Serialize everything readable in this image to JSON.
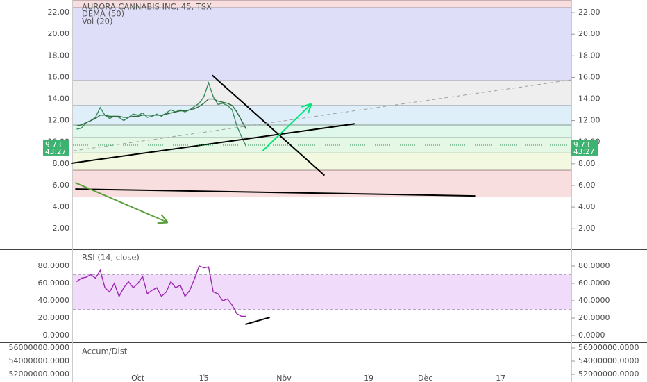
{
  "chart_data": [
    {
      "type": "line",
      "title": "AURORA CANNABIS INC, 45, TSX",
      "annotations": [
        "Vol (20)"
      ],
      "x": [
        -13,
        -12,
        -11,
        -10,
        -9,
        -8,
        -7,
        -6,
        -5,
        -4,
        -3,
        -2,
        -1,
        0,
        1,
        2,
        3,
        4,
        5,
        6,
        7,
        8,
        9,
        10,
        11,
        12,
        13,
        14,
        15,
        16,
        17,
        18,
        19,
        20,
        21,
        22,
        23
      ],
      "series": [
        {
          "color": "#3d8b5f",
          "values": [
            11.2,
            11.3,
            11.8,
            12.0,
            12.3,
            13.2,
            12.5,
            12.2,
            12.4,
            12.3,
            12.0,
            12.3,
            12.6,
            12.5,
            12.7,
            12.3,
            12.4,
            12.6,
            12.4,
            12.7,
            13.0,
            12.8,
            13.0,
            12.8,
            13.0,
            13.3,
            13.6,
            14.2,
            15.5,
            14.2,
            13.5,
            13.6,
            13.4,
            13.0,
            11.5,
            10.5,
            9.6
          ]
        },
        {
          "name": "DEMA (50)",
          "color": "#2e6b3a",
          "values": [
            11.5,
            11.6,
            11.8,
            12.0,
            12.2,
            12.5,
            12.5,
            12.4,
            12.4,
            12.4,
            12.3,
            12.3,
            12.4,
            12.4,
            12.5,
            12.5,
            12.5,
            12.5,
            12.5,
            12.6,
            12.7,
            12.8,
            12.9,
            12.9,
            13.0,
            13.1,
            13.3,
            13.6,
            14.0,
            14.0,
            13.8,
            13.7,
            13.6,
            13.4,
            12.8,
            12.0,
            11.2
          ]
        }
      ],
      "xlim": [
        -13.8,
        92
      ],
      "xticks": [
        {
          "value": 0,
          "label": "Oct"
        },
        {
          "value": 14,
          "label": "15"
        },
        {
          "value": 31,
          "label": "Nov"
        },
        {
          "value": 49,
          "label": "19"
        },
        {
          "value": 61,
          "label": "Dec"
        },
        {
          "value": 77,
          "label": "17"
        }
      ],
      "ylim": [
        0.15,
        23.16
      ],
      "yticks": [
        {
          "value": 2,
          "label": "2.00"
        },
        {
          "value": 4,
          "label": "4.00"
        },
        {
          "value": 6,
          "label": "6.00"
        },
        {
          "value": 8,
          "label": "8.00"
        },
        {
          "value": 10,
          "label": "10.00"
        },
        {
          "value": 12,
          "label": "12.00"
        },
        {
          "value": 14,
          "label": "14.00"
        },
        {
          "value": 16,
          "label": "16.00"
        },
        {
          "value": 18,
          "label": "18.00"
        },
        {
          "value": 20,
          "label": "20.00"
        },
        {
          "value": 22,
          "label": "22.00"
        }
      ],
      "last_price": {
        "value": 9.73,
        "label": "9.73"
      },
      "countdown": "43:27",
      "fib_bands": [
        {
          "from": 22.45,
          "to": 23.16,
          "color": "#f6d3d3"
        },
        {
          "from": 15.7,
          "to": 22.45,
          "color": "#d4d3f7"
        },
        {
          "from": 13.39,
          "to": 15.7,
          "color": "#e8e8e8"
        },
        {
          "from": 11.59,
          "to": 13.39,
          "color": "#d3e9f7"
        },
        {
          "from": 10.43,
          "to": 11.59,
          "color": "#d5f5e6"
        },
        {
          "from": 9.0,
          "to": 10.43,
          "color": "#dcf5dc"
        },
        {
          "from": 7.41,
          "to": 9.0,
          "color": "#eef7d5"
        },
        {
          "from": 4.9,
          "to": 7.41,
          "color": "#f6d3d3"
        }
      ],
      "drawings": [
        {
          "x": [
            15.76,
            39.6
          ],
          "y": [
            16.2,
            6.93
          ],
          "color": "#000000"
        },
        {
          "x": [
            -14.2,
            46
          ],
          "y": [
            8.05,
            11.7
          ],
          "color": "#000000"
        },
        {
          "x": [
            -13.3,
            71.6
          ],
          "y": [
            5.67,
            5.03
          ],
          "color": "#000000"
        },
        {
          "x": [
            -13.7,
            92
          ],
          "y": [
            9.2,
            15.77
          ],
          "color": "#9e9e9e",
          "dashed": true
        },
        {
          "x": [
            26.5,
            36.7
          ],
          "y": [
            9.2,
            13.5
          ],
          "color": "#00e676",
          "arrow": true
        },
        {
          "x": [
            -13.3,
            6.2
          ],
          "y": [
            6.25,
            2.6
          ],
          "color": "#5a9e3c",
          "arrow": true
        }
      ]
    },
    {
      "type": "line",
      "title": "RSI (14, close)",
      "series": [
        {
          "color": "#9c27b0",
          "values": [
            62,
            66,
            67,
            70,
            66,
            75,
            55,
            50,
            60,
            45,
            55,
            62,
            55,
            60,
            68,
            48,
            52,
            55,
            45,
            50,
            62,
            55,
            58,
            45,
            52,
            65,
            80,
            78,
            79,
            50,
            48,
            40,
            42,
            35,
            25,
            22,
            22
          ]
        }
      ],
      "ylim": [
        -7.2,
        97.6
      ],
      "yticks": [
        {
          "value": 0,
          "label": "0.0000"
        },
        {
          "value": 20,
          "label": "20.0000"
        },
        {
          "value": 40,
          "label": "40.0000"
        },
        {
          "value": 60,
          "label": "60.0000"
        },
        {
          "value": 80,
          "label": "80.0000"
        }
      ],
      "band": {
        "from": 30,
        "to": 70,
        "color": "#f0dcfa"
      },
      "drawings": [
        {
          "x": [
            22.8,
            28
          ],
          "y": [
            12.8,
            20.8
          ],
          "color": "#000000"
        }
      ]
    },
    {
      "type": "line",
      "title": "Accum/Dist",
      "ylim": [
        51900000,
        56630000
      ],
      "yticks": [
        {
          "value": 52000000,
          "label": "52000000.0000"
        },
        {
          "value": 54000000,
          "label": "54000000.0000"
        },
        {
          "value": 56000000,
          "label": "56000000.0000"
        }
      ]
    }
  ]
}
